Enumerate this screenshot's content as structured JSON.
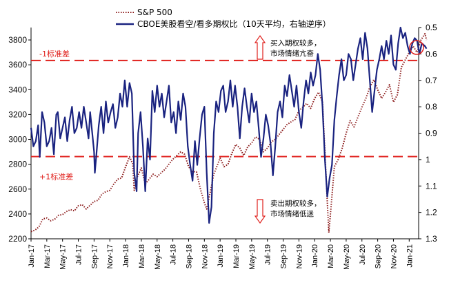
{
  "chart_data": {
    "type": "line",
    "legend": {
      "placement": "top-center",
      "entries": [
        "S&P 500",
        "CBOE美股看空/看多期权比（10天平均，右轴逆序）"
      ]
    },
    "left_axis": {
      "min": 2200,
      "max": 3900,
      "ticks": [
        "2200",
        "2400",
        "2600",
        "2800",
        "3000",
        "3200",
        "3400",
        "3600",
        "3800"
      ]
    },
    "right_axis": {
      "min": 0.5,
      "max": 1.3,
      "inverted": true,
      "ticks": [
        "0.5",
        "0.6",
        "0.7",
        "0.8",
        "0.9",
        "1",
        "1.1",
        "1.2",
        "1.3"
      ]
    },
    "x_ticks": [
      "Jan-17",
      "Mar-17",
      "May-17",
      "Jul-17",
      "Sep-17",
      "Nov-17",
      "Jan-18",
      "Mar-18",
      "May-18",
      "Jul-18",
      "Sep-18",
      "Nov-18",
      "Jan-19",
      "Mar-19",
      "May-19",
      "Jul-19",
      "Sep-19",
      "Nov-19",
      "Jan-20",
      "Mar-20",
      "May-20",
      "Jul-20",
      "Sep-20",
      "Nov-20",
      "Jan-21"
    ],
    "x_range_months": [
      0,
      25.3
    ],
    "series": [
      {
        "name": "S&P 500",
        "axis": "left",
        "color": "#8b1a1a",
        "style": "dotted",
        "points": [
          [
            0,
            2258
          ],
          [
            0.5,
            2270
          ],
          [
            1,
            2295
          ],
          [
            1.5,
            2360
          ],
          [
            2,
            2368
          ],
          [
            2.5,
            2345
          ],
          [
            3,
            2358
          ],
          [
            3.5,
            2390
          ],
          [
            4,
            2395
          ],
          [
            4.5,
            2420
          ],
          [
            5,
            2435
          ],
          [
            5.5,
            2425
          ],
          [
            6,
            2465
          ],
          [
            6.5,
            2475
          ],
          [
            7,
            2440
          ],
          [
            7.5,
            2470
          ],
          [
            8,
            2500
          ],
          [
            8.5,
            2510
          ],
          [
            9,
            2560
          ],
          [
            9.5,
            2580
          ],
          [
            10,
            2590
          ],
          [
            10.5,
            2640
          ],
          [
            11,
            2680
          ],
          [
            11.5,
            2690
          ],
          [
            12,
            2780
          ],
          [
            12.5,
            2860
          ],
          [
            12.9,
            2805
          ],
          [
            13.1,
            2590
          ],
          [
            13.5,
            2700
          ],
          [
            14,
            2770
          ],
          [
            14.5,
            2640
          ],
          [
            15,
            2680
          ],
          [
            15.5,
            2720
          ],
          [
            16,
            2700
          ],
          [
            16.5,
            2730
          ],
          [
            17,
            2760
          ],
          [
            17.5,
            2800
          ],
          [
            18,
            2840
          ],
          [
            18.5,
            2870
          ],
          [
            19,
            2900
          ],
          [
            19.5,
            2880
          ],
          [
            20,
            2780
          ],
          [
            20.5,
            2740
          ],
          [
            21,
            2740
          ],
          [
            21.5,
            2600
          ],
          [
            22,
            2490
          ],
          [
            22.3,
            2440
          ],
          [
            22.8,
            2590
          ],
          [
            23.2,
            2720
          ],
          [
            23.7,
            2800
          ],
          [
            24,
            2850
          ],
          [
            24.5,
            2780
          ],
          [
            25,
            2800
          ],
          [
            25.5,
            2890
          ],
          [
            26,
            2960
          ],
          [
            26.5,
            2930
          ],
          [
            27,
            2870
          ],
          [
            27.5,
            2940
          ],
          [
            28,
            2970
          ],
          [
            28.5,
            3020
          ],
          [
            29,
            3000
          ],
          [
            29.5,
            2900
          ],
          [
            30,
            2930
          ],
          [
            30.5,
            2980
          ],
          [
            31,
            3000
          ],
          [
            31.5,
            3040
          ],
          [
            32,
            3080
          ],
          [
            32.5,
            3120
          ],
          [
            33,
            3140
          ],
          [
            33.5,
            3160
          ],
          [
            34,
            3230
          ],
          [
            34.5,
            3260
          ],
          [
            35,
            3290
          ],
          [
            35.5,
            3250
          ],
          [
            36,
            3330
          ],
          [
            36.5,
            3380
          ],
          [
            37,
            3300
          ],
          [
            37.3,
            2900
          ],
          [
            37.6,
            2500
          ],
          [
            37.8,
            2250
          ],
          [
            38.1,
            2470
          ],
          [
            38.5,
            2780
          ],
          [
            39,
            2840
          ],
          [
            39.5,
            2930
          ],
          [
            40,
            3050
          ],
          [
            40.5,
            3150
          ],
          [
            41,
            3100
          ],
          [
            41.5,
            3180
          ],
          [
            42,
            3260
          ],
          [
            42.5,
            3330
          ],
          [
            43,
            3420
          ],
          [
            43.5,
            3480
          ],
          [
            44,
            3400
          ],
          [
            44.5,
            3330
          ],
          [
            45,
            3380
          ],
          [
            45.5,
            3440
          ],
          [
            46,
            3300
          ],
          [
            46.5,
            3360
          ],
          [
            47,
            3580
          ],
          [
            47.5,
            3640
          ],
          [
            48,
            3700
          ],
          [
            48.5,
            3750
          ],
          [
            49,
            3700
          ],
          [
            49.5,
            3800
          ],
          [
            50,
            3850
          ],
          [
            50.2,
            3800
          ]
        ]
      },
      {
        "name": "CBOE美股看空/看多期权比（10天平均，右轴逆序）",
        "axis": "right",
        "color": "#1a2380",
        "style": "solid",
        "points": [
          [
            0,
            0.88
          ],
          [
            0.3,
            0.95
          ],
          [
            0.6,
            0.93
          ],
          [
            0.9,
            0.87
          ],
          [
            1.1,
            0.99
          ],
          [
            1.4,
            0.82
          ],
          [
            1.7,
            0.86
          ],
          [
            2,
            0.95
          ],
          [
            2.3,
            0.93
          ],
          [
            2.6,
            0.88
          ],
          [
            2.9,
            0.98
          ],
          [
            3.2,
            0.83
          ],
          [
            3.4,
            0.82
          ],
          [
            3.7,
            0.92
          ],
          [
            4,
            0.88
          ],
          [
            4.3,
            0.84
          ],
          [
            4.6,
            0.93
          ],
          [
            4.9,
            0.85
          ],
          [
            5.2,
            0.8
          ],
          [
            5.5,
            0.9
          ],
          [
            5.8,
            0.88
          ],
          [
            6.1,
            0.82
          ],
          [
            6.4,
            0.88
          ],
          [
            6.7,
            0.8
          ],
          [
            7,
            0.86
          ],
          [
            7.3,
            0.92
          ],
          [
            7.5,
            0.82
          ],
          [
            7.7,
            0.88
          ],
          [
            8,
            0.97
          ],
          [
            8.1,
            1.05
          ],
          [
            8.3,
            0.98
          ],
          [
            8.6,
            0.87
          ],
          [
            8.9,
            0.8
          ],
          [
            9.2,
            0.9
          ],
          [
            9.5,
            0.78
          ],
          [
            9.8,
            0.86
          ],
          [
            10.1,
            0.82
          ],
          [
            10.4,
            0.79
          ],
          [
            10.7,
            0.88
          ],
          [
            11,
            0.84
          ],
          [
            11.3,
            0.75
          ],
          [
            11.6,
            0.8
          ],
          [
            11.9,
            0.7
          ],
          [
            12.2,
            0.8
          ],
          [
            12.5,
            0.71
          ],
          [
            12.8,
            0.75
          ],
          [
            13.1,
            1.05
          ],
          [
            13.4,
            1.12
          ],
          [
            13.6,
            0.9
          ],
          [
            13.9,
            0.82
          ],
          [
            14.2,
            0.95
          ],
          [
            14.5,
            1.12
          ],
          [
            14.8,
            0.92
          ],
          [
            15.1,
            1.0
          ],
          [
            15.4,
            0.74
          ],
          [
            15.7,
            0.82
          ],
          [
            16,
            0.72
          ],
          [
            16.3,
            0.8
          ],
          [
            16.6,
            0.75
          ],
          [
            16.9,
            0.84
          ],
          [
            17.2,
            0.78
          ],
          [
            17.5,
            0.72
          ],
          [
            17.8,
            0.86
          ],
          [
            18.1,
            0.82
          ],
          [
            18.4,
            0.9
          ],
          [
            18.7,
            0.78
          ],
          [
            19,
            0.85
          ],
          [
            19.3,
            0.75
          ],
          [
            19.6,
            0.8
          ],
          [
            19.9,
            0.95
          ],
          [
            20.2,
            1.02
          ],
          [
            20.5,
            1.08
          ],
          [
            20.8,
            0.93
          ],
          [
            21.1,
            1.02
          ],
          [
            21.4,
            0.92
          ],
          [
            21.7,
            0.83
          ],
          [
            22,
            0.8
          ],
          [
            22.3,
            1.05
          ],
          [
            22.6,
            1.24
          ],
          [
            22.9,
            1.18
          ],
          [
            23.2,
            0.9
          ],
          [
            23.5,
            0.78
          ],
          [
            23.8,
            0.82
          ],
          [
            24.1,
            0.74
          ],
          [
            24.4,
            0.72
          ],
          [
            24.7,
            0.82
          ],
          [
            25,
            0.78
          ],
          [
            25.3,
            0.7
          ],
          [
            25.6,
            0.8
          ],
          [
            25.9,
            0.72
          ],
          [
            26.2,
            0.8
          ],
          [
            26.5,
            0.92
          ],
          [
            26.8,
            0.8
          ],
          [
            27.1,
            0.73
          ],
          [
            27.4,
            0.8
          ],
          [
            27.7,
            0.86
          ],
          [
            28,
            0.75
          ],
          [
            28.3,
            0.82
          ],
          [
            28.6,
            0.78
          ],
          [
            28.9,
            0.88
          ],
          [
            29.2,
            0.99
          ],
          [
            29.5,
            0.92
          ],
          [
            29.8,
            0.83
          ],
          [
            30.1,
            0.87
          ],
          [
            30.4,
            0.94
          ],
          [
            30.7,
            1.06
          ],
          [
            31,
            0.95
          ],
          [
            31.3,
            0.82
          ],
          [
            31.6,
            0.78
          ],
          [
            31.9,
            0.84
          ],
          [
            32.2,
            0.72
          ],
          [
            32.5,
            0.76
          ],
          [
            32.8,
            0.68
          ],
          [
            33.1,
            0.74
          ],
          [
            33.4,
            0.8
          ],
          [
            33.7,
            0.72
          ],
          [
            34,
            0.82
          ],
          [
            34.3,
            0.88
          ],
          [
            34.6,
            0.78
          ],
          [
            34.9,
            0.7
          ],
          [
            35.2,
            0.75
          ],
          [
            35.5,
            0.67
          ],
          [
            35.8,
            0.72
          ],
          [
            36.1,
            0.68
          ],
          [
            36.4,
            0.6
          ],
          [
            36.7,
            0.66
          ],
          [
            37,
            0.8
          ],
          [
            37.3,
            1.0
          ],
          [
            37.6,
            1.14
          ],
          [
            37.9,
            1.07
          ],
          [
            38.2,
            1.02
          ],
          [
            38.5,
            0.85
          ],
          [
            38.8,
            0.76
          ],
          [
            39.1,
            0.68
          ],
          [
            39.4,
            0.62
          ],
          [
            39.7,
            0.7
          ],
          [
            40,
            0.68
          ],
          [
            40.3,
            0.6
          ],
          [
            40.6,
            0.62
          ],
          [
            40.9,
            0.7
          ],
          [
            41.2,
            0.64
          ],
          [
            41.5,
            0.58
          ],
          [
            41.8,
            0.54
          ],
          [
            42.1,
            0.62
          ],
          [
            42.4,
            0.52
          ],
          [
            42.7,
            0.58
          ],
          [
            43,
            0.7
          ],
          [
            43.3,
            0.82
          ],
          [
            43.6,
            0.74
          ],
          [
            43.9,
            0.66
          ],
          [
            44.2,
            0.62
          ],
          [
            44.5,
            0.57
          ],
          [
            44.8,
            0.62
          ],
          [
            45.1,
            0.55
          ],
          [
            45.4,
            0.6
          ],
          [
            45.7,
            0.53
          ],
          [
            46,
            0.64
          ],
          [
            46.3,
            0.66
          ],
          [
            46.6,
            0.56
          ],
          [
            46.9,
            0.5
          ],
          [
            47.2,
            0.54
          ],
          [
            47.5,
            0.52
          ],
          [
            47.8,
            0.57
          ],
          [
            48.1,
            0.6
          ],
          [
            48.4,
            0.56
          ],
          [
            48.7,
            0.54
          ],
          [
            49,
            0.55
          ],
          [
            49.3,
            0.6
          ],
          [
            49.6,
            0.56
          ],
          [
            50,
            0.57
          ],
          [
            50.2,
            0.58
          ]
        ]
      }
    ],
    "reference_lines": [
      {
        "axis": "left",
        "value": 3635,
        "label": "-1标准差"
      },
      {
        "axis": "left",
        "value": 2862,
        "label": "+1标准差"
      }
    ],
    "annotations": [
      {
        "arrow": "up",
        "lines": [
          "买入期权较多，",
          "市场情绪亢奋"
        ]
      },
      {
        "arrow": "down",
        "lines": [
          "卖出期权较多，",
          "市场情绪低迷"
        ]
      }
    ],
    "colors": {
      "sp500": "#8b1a1a",
      "put_call": "#1a2380",
      "std_lines": "#e0201c",
      "highlight": "#e0201c"
    }
  }
}
